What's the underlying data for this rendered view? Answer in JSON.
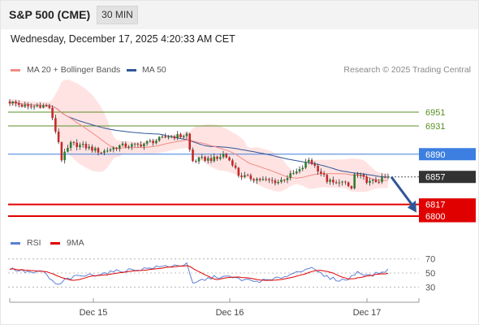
{
  "header": {
    "instrument": "S&P 500 (CME)",
    "timeframe": "30 MIN",
    "datetime": "Wednesday, December 17, 2025 4:20:33 AM CET"
  },
  "legend": {
    "ma20_label": "MA 20 + Bollinger Bands",
    "ma50_label": "MA 50",
    "ma20_color": "#f28b82",
    "ma50_color": "#2f5597",
    "credit": "Research © 2025 Trading Central"
  },
  "rsi_legend": {
    "rsi_label": "RSI",
    "ma_label": "9MA",
    "rsi_color": "#5b7fd6",
    "ma_color": "#e00000"
  },
  "colors": {
    "up": "#2e7d32",
    "down": "#c62828",
    "target_green": "#5a8f23",
    "resistance_blue": "#3d7fe0",
    "current_price": "#333333",
    "support_red": "#e00000",
    "arrow": "#2f5597",
    "band_fill": "#ffe3e3"
  },
  "chart_data": [
    {
      "type": "candlestick",
      "title": "S&P 500 (CME)",
      "timeframe": "30 MIN",
      "x_ticks": [
        "Dec 15",
        "Dec 16",
        "Dec 17"
      ],
      "ylim": [
        6780,
        6990
      ],
      "price_path": [
        {
          "bar": 0,
          "price": 6966
        },
        {
          "bar": 6,
          "price": 6958
        },
        {
          "bar": 10,
          "price": 6961
        },
        {
          "bar": 13,
          "price": 6958
        },
        {
          "bar": 14,
          "price": 6940
        },
        {
          "bar": 16,
          "price": 6908
        },
        {
          "bar": 17,
          "price": 6883
        },
        {
          "bar": 20,
          "price": 6905
        },
        {
          "bar": 24,
          "price": 6902
        },
        {
          "bar": 30,
          "price": 6893
        },
        {
          "bar": 36,
          "price": 6902
        },
        {
          "bar": 42,
          "price": 6903
        },
        {
          "bar": 48,
          "price": 6910
        },
        {
          "bar": 52,
          "price": 6916
        },
        {
          "bar": 56,
          "price": 6916
        },
        {
          "bar": 58,
          "price": 6919
        },
        {
          "bar": 59,
          "price": 6896
        },
        {
          "bar": 60,
          "price": 6880
        },
        {
          "bar": 63,
          "price": 6883
        },
        {
          "bar": 68,
          "price": 6883
        },
        {
          "bar": 70,
          "price": 6890
        },
        {
          "bar": 73,
          "price": 6877
        },
        {
          "bar": 75,
          "price": 6860
        },
        {
          "bar": 78,
          "price": 6856
        },
        {
          "bar": 81,
          "price": 6854
        },
        {
          "bar": 84,
          "price": 6852
        },
        {
          "bar": 88,
          "price": 6850
        },
        {
          "bar": 91,
          "price": 6857
        },
        {
          "bar": 95,
          "price": 6866
        },
        {
          "bar": 98,
          "price": 6882
        },
        {
          "bar": 101,
          "price": 6868
        },
        {
          "bar": 104,
          "price": 6852
        },
        {
          "bar": 107,
          "price": 6846
        },
        {
          "bar": 108,
          "price": 6852
        },
        {
          "bar": 110,
          "price": 6846
        },
        {
          "bar": 112,
          "price": 6840
        },
        {
          "bar": 113,
          "price": 6860
        },
        {
          "bar": 115,
          "price": 6857
        },
        {
          "bar": 118,
          "price": 6849
        },
        {
          "bar": 121,
          "price": 6852
        },
        {
          "bar": 124,
          "price": 6857
        }
      ],
      "bars": 125,
      "levels": [
        {
          "price": 6951,
          "label": "6951",
          "kind": "target"
        },
        {
          "price": 6931,
          "label": "6931",
          "kind": "target"
        },
        {
          "price": 6890,
          "label": "6890",
          "kind": "resistance"
        },
        {
          "price": 6857,
          "label": "6857",
          "kind": "current"
        },
        {
          "price": 6817,
          "label": "6817",
          "kind": "support"
        },
        {
          "price": 6800,
          "label": "6800",
          "kind": "support"
        }
      ],
      "projection": {
        "from": 6857,
        "to": 6810
      }
    },
    {
      "type": "line",
      "title": "RSI",
      "ylim": [
        20,
        80
      ],
      "y_ticks": [
        70,
        50,
        30
      ],
      "rsi_path": [
        {
          "bar": 0,
          "value": 56
        },
        {
          "bar": 4,
          "value": 53
        },
        {
          "bar": 8,
          "value": 50
        },
        {
          "bar": 11,
          "value": 52
        },
        {
          "bar": 14,
          "value": 38
        },
        {
          "bar": 16,
          "value": 32
        },
        {
          "bar": 18,
          "value": 40
        },
        {
          "bar": 22,
          "value": 45
        },
        {
          "bar": 28,
          "value": 48
        },
        {
          "bar": 36,
          "value": 53
        },
        {
          "bar": 44,
          "value": 56
        },
        {
          "bar": 52,
          "value": 60
        },
        {
          "bar": 58,
          "value": 62
        },
        {
          "bar": 60,
          "value": 34
        },
        {
          "bar": 63,
          "value": 40
        },
        {
          "bar": 68,
          "value": 45
        },
        {
          "bar": 72,
          "value": 44
        },
        {
          "bar": 76,
          "value": 41
        },
        {
          "bar": 80,
          "value": 38
        },
        {
          "bar": 86,
          "value": 40
        },
        {
          "bar": 92,
          "value": 48
        },
        {
          "bar": 98,
          "value": 58
        },
        {
          "bar": 104,
          "value": 44
        },
        {
          "bar": 108,
          "value": 40
        },
        {
          "bar": 111,
          "value": 41
        },
        {
          "bar": 114,
          "value": 52
        },
        {
          "bar": 118,
          "value": 46
        },
        {
          "bar": 121,
          "value": 50
        },
        {
          "bar": 124,
          "value": 54
        }
      ],
      "ma_window": 9
    }
  ]
}
